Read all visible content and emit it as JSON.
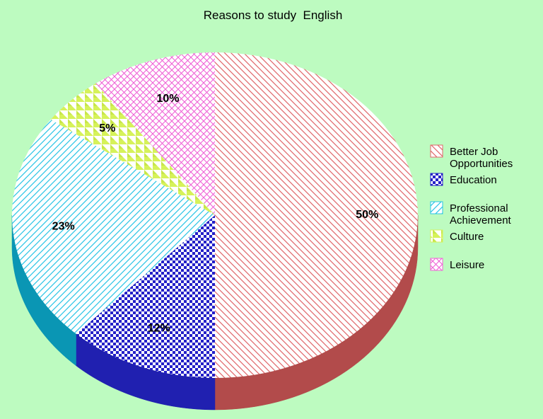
{
  "chart_data": {
    "type": "pie",
    "title": "Reasons to study  English",
    "slices": [
      {
        "label": "Better Job Opportunities",
        "legend_lines": [
          "Better Job",
          "Opportunities"
        ],
        "value": 50,
        "display": "50%",
        "color": "#e0666a",
        "side_color": "#b24b4b",
        "pattern": "diag-back"
      },
      {
        "label": "Education",
        "legend_lines": [
          "Education"
        ],
        "value": 12,
        "display": "12%",
        "color": "#2420c8",
        "side_color": "#2020b0",
        "pattern": "checker"
      },
      {
        "label": "Professional Achievement",
        "legend_lines": [
          "Professional",
          "Achievement"
        ],
        "value": 23,
        "display": "23%",
        "color": "#29c4e6",
        "side_color": "#0a96b4",
        "pattern": "diag-fwd"
      },
      {
        "label": "Culture",
        "legend_lines": [
          "Culture"
        ],
        "value": 5,
        "display": "5%",
        "color": "#d6f25a",
        "side_color": "#b8d84a",
        "pattern": "triangles"
      },
      {
        "label": "Leisure",
        "legend_lines": [
          "Leisure"
        ],
        "value": 10,
        "display": "10%",
        "color": "#f060d6",
        "side_color": "#c040b0",
        "pattern": "crosshatch"
      }
    ],
    "legend_position": "right"
  }
}
